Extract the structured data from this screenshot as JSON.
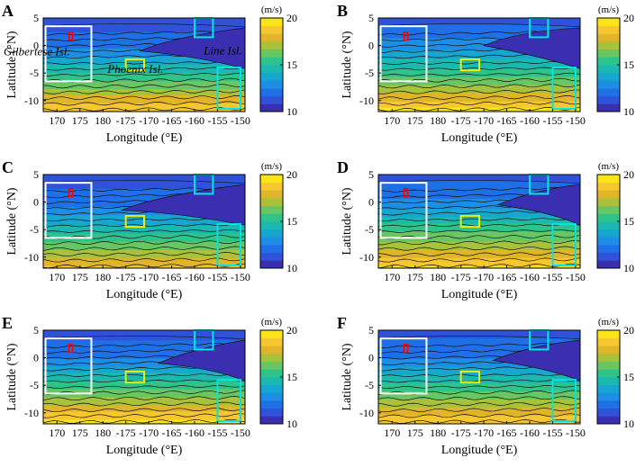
{
  "figure": {
    "panels": [
      {
        "label": "A",
        "has_annotations": true
      },
      {
        "label": "B",
        "has_annotations": false
      },
      {
        "label": "C",
        "has_annotations": false
      },
      {
        "label": "D",
        "has_annotations": false
      },
      {
        "label": "E",
        "has_annotations": false
      },
      {
        "label": "F",
        "has_annotations": false
      }
    ],
    "annotations": [
      "Gilbertese Isl.",
      "Phoenix Isl.",
      "Line Isl."
    ]
  },
  "chart_data": {
    "type": "heatmap",
    "description_units": "m/s",
    "xlabel": "Longitude (°E)",
    "ylabel": "Latitude (°N)",
    "x_ticks": [
      170,
      175,
      180,
      -175,
      -170,
      -165,
      -160,
      -155,
      -150
    ],
    "x_tick_labels": [
      "170",
      "175",
      "180",
      "-175",
      "-170",
      "-165",
      "-160",
      "-155",
      "-150"
    ],
    "y_ticks": [
      5,
      0,
      -5,
      -10
    ],
    "y_tick_labels": [
      "5",
      "0",
      "-5",
      "-10"
    ],
    "xlim_east": [
      167,
      211
    ],
    "ylim": [
      -12,
      5
    ],
    "colorbar": {
      "label": "(m/s)",
      "range": [
        10,
        20
      ],
      "ticks": [
        20,
        15,
        10
      ],
      "tick_labels": [
        "20",
        "15",
        "10"
      ],
      "colors": [
        "#3a2fb0",
        "#2f52d8",
        "#1f6fe6",
        "#1d8ee3",
        "#17a6cf",
        "#1bb8b0",
        "#2ec38a",
        "#68c763",
        "#a8c23c",
        "#e0b52a",
        "#f6c72e",
        "#f9e518"
      ]
    },
    "boxes": [
      {
        "name": "Gilbertese region",
        "color": "#ffffff",
        "lon": [
          167.5,
          177.5
        ],
        "lat": [
          -6.5,
          3.5
        ]
      },
      {
        "name": "Phoenix Isl.",
        "color": "#eeee00",
        "lon": [
          -175,
          -171
        ],
        "lat": [
          -4.5,
          -2.5
        ]
      },
      {
        "name": "Line Isl. north",
        "color": "#00e5e5",
        "lon": [
          -160,
          -156
        ],
        "lat": [
          1.5,
          5
        ]
      },
      {
        "name": "Line Isl. south",
        "color": "#00e5e5",
        "lon": [
          -155,
          -150
        ],
        "lat": [
          -11.5,
          -4
        ]
      },
      {
        "name": "site",
        "color": "#ff0000",
        "lon": [
          172.6,
          173.4
        ],
        "lat": [
          1,
          2.4
        ]
      }
    ],
    "panels": [
      {
        "label": "A",
        "field": [
          {
            "lat": 5,
            "v": 11.0
          },
          {
            "lat": 0,
            "v": 12.3
          },
          {
            "lat": -5,
            "v": 15.0
          },
          {
            "lat": -10,
            "v": 18.0
          },
          {
            "lat": -12,
            "v": 19.0
          }
        ],
        "tongue_end_lon": -172,
        "tongue_north_lat": 0.5
      },
      {
        "label": "B",
        "field": [
          {
            "lat": 5,
            "v": 11.6
          },
          {
            "lat": 0,
            "v": 12.8
          },
          {
            "lat": -5,
            "v": 15.5
          },
          {
            "lat": -10,
            "v": 18.3
          },
          {
            "lat": -12,
            "v": 19.5
          }
        ],
        "tongue_end_lon": -170,
        "tongue_north_lat": 1.5
      },
      {
        "label": "C",
        "field": [
          {
            "lat": 5,
            "v": 11.2
          },
          {
            "lat": 0,
            "v": 12.1
          },
          {
            "lat": -5,
            "v": 14.6
          },
          {
            "lat": -10,
            "v": 17.5
          },
          {
            "lat": -12,
            "v": 18.6
          }
        ],
        "tongue_end_lon": -176,
        "tongue_north_lat": 0.0
      },
      {
        "label": "D",
        "field": [
          {
            "lat": 5,
            "v": 11.4
          },
          {
            "lat": 0,
            "v": 12.6
          },
          {
            "lat": -5,
            "v": 15.6
          },
          {
            "lat": -10,
            "v": 18.2
          },
          {
            "lat": -12,
            "v": 19.3
          }
        ],
        "tongue_end_lon": -167,
        "tongue_north_lat": 1.0
      },
      {
        "label": "E",
        "field": [
          {
            "lat": 5,
            "v": 11.2
          },
          {
            "lat": 0,
            "v": 12.4
          },
          {
            "lat": -5,
            "v": 15.4
          },
          {
            "lat": -10,
            "v": 18.4
          },
          {
            "lat": -12,
            "v": 19.6
          }
        ],
        "tongue_end_lon": -168,
        "tongue_north_lat": 0.5
      },
      {
        "label": "F",
        "field": [
          {
            "lat": 5,
            "v": 11.3
          },
          {
            "lat": 0,
            "v": 12.5
          },
          {
            "lat": -5,
            "v": 15.3
          },
          {
            "lat": -10,
            "v": 18.1
          },
          {
            "lat": -12,
            "v": 19.2
          }
        ],
        "tongue_end_lon": -168,
        "tongue_north_lat": 1.0
      }
    ]
  }
}
